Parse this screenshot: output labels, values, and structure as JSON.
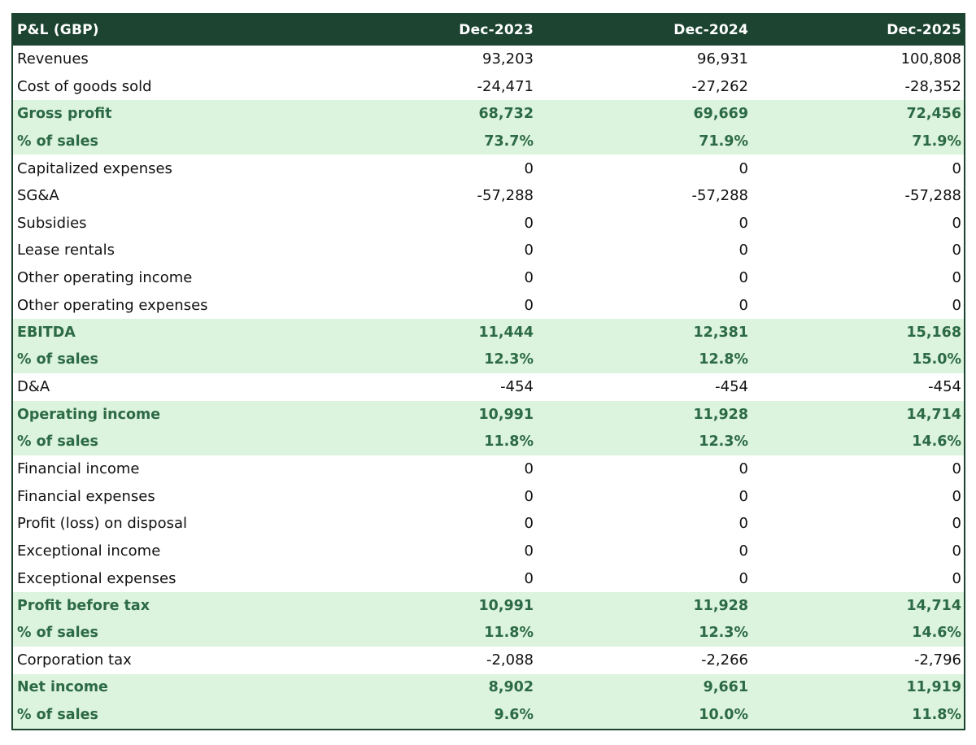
{
  "table": {
    "headers": [
      "P&L (GBP)",
      "Dec-2023",
      "Dec-2024",
      "Dec-2025"
    ],
    "rows": [
      {
        "label": "Revenues",
        "values": [
          "93,203",
          "96,931",
          "100,808"
        ],
        "highlight": false
      },
      {
        "label": "Cost of goods sold",
        "values": [
          "-24,471",
          "-27,262",
          "-28,352"
        ],
        "highlight": false
      },
      {
        "label": "Gross profit",
        "values": [
          "68,732",
          "69,669",
          "72,456"
        ],
        "highlight": true
      },
      {
        "label": "% of sales",
        "values": [
          "73.7%",
          "71.9%",
          "71.9%"
        ],
        "highlight": true
      },
      {
        "label": "Capitalized expenses",
        "values": [
          "0",
          "0",
          "0"
        ],
        "highlight": false
      },
      {
        "label": "SG&A",
        "values": [
          "-57,288",
          "-57,288",
          "-57,288"
        ],
        "highlight": false
      },
      {
        "label": "Subsidies",
        "values": [
          "0",
          "0",
          "0"
        ],
        "highlight": false
      },
      {
        "label": "Lease rentals",
        "values": [
          "0",
          "0",
          "0"
        ],
        "highlight": false
      },
      {
        "label": "Other operating income",
        "values": [
          "0",
          "0",
          "0"
        ],
        "highlight": false
      },
      {
        "label": "Other operating expenses",
        "values": [
          "0",
          "0",
          "0"
        ],
        "highlight": false
      },
      {
        "label": "EBITDA",
        "values": [
          "11,444",
          "12,381",
          "15,168"
        ],
        "highlight": true
      },
      {
        "label": "% of sales",
        "values": [
          "12.3%",
          "12.8%",
          "15.0%"
        ],
        "highlight": true
      },
      {
        "label": "D&A",
        "values": [
          "-454",
          "-454",
          "-454"
        ],
        "highlight": false
      },
      {
        "label": "Operating income",
        "values": [
          "10,991",
          "11,928",
          "14,714"
        ],
        "highlight": true
      },
      {
        "label": "% of sales",
        "values": [
          "11.8%",
          "12.3%",
          "14.6%"
        ],
        "highlight": true
      },
      {
        "label": "Financial income",
        "values": [
          "0",
          "0",
          "0"
        ],
        "highlight": false
      },
      {
        "label": "Financial expenses",
        "values": [
          "0",
          "0",
          "0"
        ],
        "highlight": false
      },
      {
        "label": "Profit (loss) on disposal",
        "values": [
          "0",
          "0",
          "0"
        ],
        "highlight": false
      },
      {
        "label": "Exceptional income",
        "values": [
          "0",
          "0",
          "0"
        ],
        "highlight": false
      },
      {
        "label": "Exceptional expenses",
        "values": [
          "0",
          "0",
          "0"
        ],
        "highlight": false
      },
      {
        "label": "Profit before tax",
        "values": [
          "10,991",
          "11,928",
          "14,714"
        ],
        "highlight": true
      },
      {
        "label": "% of sales",
        "values": [
          "11.8%",
          "12.3%",
          "14.6%"
        ],
        "highlight": true
      },
      {
        "label": "Corporation tax",
        "values": [
          "-2,088",
          "-2,266",
          "-2,796"
        ],
        "highlight": false
      },
      {
        "label": "Net income",
        "values": [
          "8,902",
          "9,661",
          "11,919"
        ],
        "highlight": true
      },
      {
        "label": "% of sales",
        "values": [
          "9.6%",
          "10.0%",
          "11.8%"
        ],
        "highlight": true
      }
    ]
  },
  "colors": {
    "header_bg": "#1c4431",
    "highlight_bg": "#dcf3dd",
    "highlight_text": "#2c6a45"
  }
}
